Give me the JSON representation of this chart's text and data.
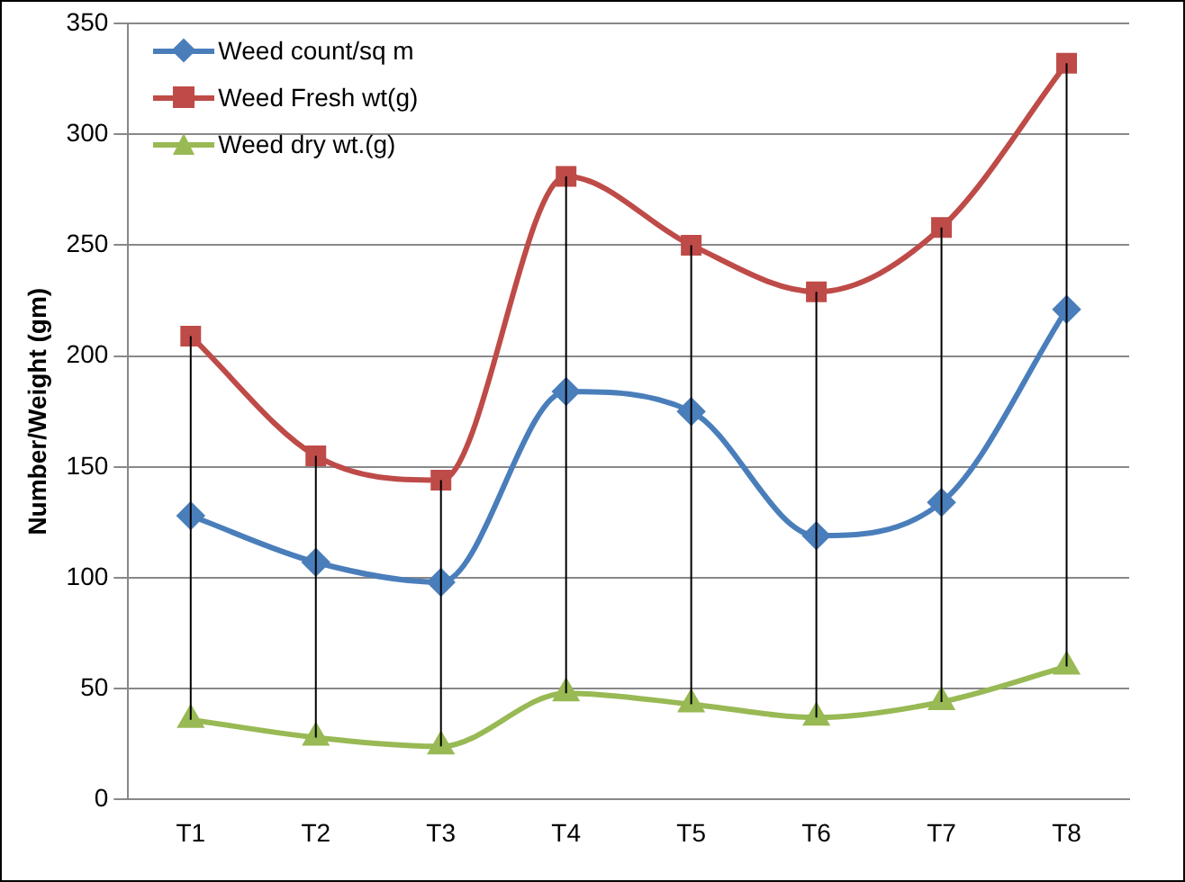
{
  "chart_data": {
    "type": "line",
    "ylabel": "Number/Weight (gm)",
    "categories": [
      "T1",
      "T2",
      "T3",
      "T4",
      "T5",
      "T6",
      "T7",
      "T8"
    ],
    "series": [
      {
        "name": "Weed count/sq m",
        "color": "#4a7ebb",
        "marker": "diamond",
        "values": [
          128,
          107,
          98,
          184,
          175,
          119,
          134,
          221
        ]
      },
      {
        "name": "Weed Fresh wt(g)",
        "color": "#be4b48",
        "marker": "square",
        "values": [
          209,
          155,
          144,
          281,
          250,
          229,
          258,
          332
        ],
        "errors": [
          [
            36,
            209
          ],
          [
            28,
            155
          ],
          [
            24,
            144
          ],
          [
            48,
            281
          ],
          [
            43,
            250
          ],
          [
            37,
            229
          ],
          [
            44,
            258
          ],
          [
            60,
            332
          ]
        ]
      },
      {
        "name": "Weed dry wt.(g)",
        "color": "#98b954",
        "marker": "triangle",
        "values": [
          36,
          28,
          24,
          48,
          43,
          37,
          44,
          60
        ]
      }
    ],
    "ylim": [
      0,
      350
    ],
    "yticks": [
      0,
      50,
      100,
      150,
      200,
      250,
      300,
      350
    ],
    "grid": "y",
    "legend": "top left"
  }
}
